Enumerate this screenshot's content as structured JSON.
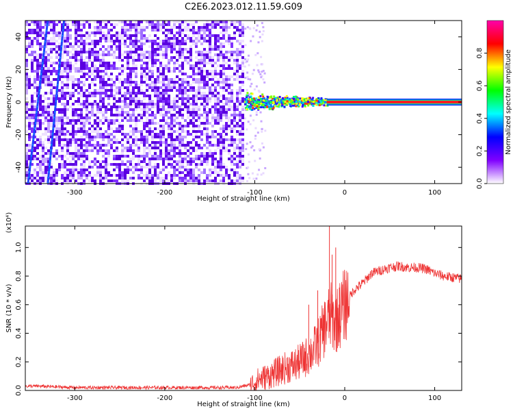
{
  "title": "C2E6.2023.012.11.59.G09",
  "chart_data": [
    {
      "type": "heatmap",
      "xlabel": "Height of straight line (km)",
      "ylabel": "Frequency (Hz)",
      "xlim": [
        -355,
        130
      ],
      "ylim": [
        -50,
        50
      ],
      "x_ticks": [
        -300,
        -200,
        -100,
        0,
        100
      ],
      "y_ticks": [
        -40,
        -20,
        0,
        20,
        40
      ],
      "noise_region_x": [
        -355,
        -112
      ],
      "signal_track": {
        "freq": 0,
        "x_start": -112,
        "x_end": 130,
        "scatter_segment_x": [
          -112,
          -20
        ],
        "strong_segment_x": [
          -20,
          130
        ]
      },
      "diagonal_artifacts": [
        {
          "x0": -352,
          "y0": -50,
          "x1": -330,
          "y1": 50
        },
        {
          "x0": -330,
          "y0": -50,
          "x1": -312,
          "y1": 50
        }
      ],
      "colorbar": {
        "label": "Normalized spectral amplitude",
        "min": 0.0,
        "max": 1.0,
        "ticks": [
          0.0,
          0.2,
          0.4,
          0.6,
          0.8
        ],
        "colormap": [
          "#ffffff",
          "#8000ff",
          "#0000ff",
          "#00ffff",
          "#00ff00",
          "#ffff00",
          "#ff0000",
          "#ff00aa"
        ]
      }
    },
    {
      "type": "line",
      "xlabel": "Height of straight line (km)",
      "ylabel": "SNR (10 * v/v)",
      "y_exponent": "(x10⁴)",
      "xlim": [
        -355,
        130
      ],
      "ylim": [
        0,
        1.15
      ],
      "x_ticks": [
        -300,
        -200,
        -100,
        0,
        100
      ],
      "y_ticks": [
        0.0,
        0.2,
        0.4,
        0.6,
        0.8,
        1.0
      ],
      "color": "#ee3333",
      "series": [
        {
          "x": [
            -355,
            -340,
            -320,
            -300,
            -250,
            -200,
            -150,
            -120,
            -105,
            -95,
            -85,
            -75,
            -65,
            -55,
            -45,
            -35,
            -28,
            -22,
            -18,
            -15,
            -12,
            -8,
            -4,
            0,
            5,
            10,
            20,
            30,
            40,
            50,
            60,
            70,
            80,
            90,
            100,
            110,
            120,
            130
          ],
          "y": [
            0.03,
            0.03,
            0.025,
            0.02,
            0.02,
            0.02,
            0.02,
            0.02,
            0.04,
            0.08,
            0.1,
            0.13,
            0.16,
            0.18,
            0.22,
            0.28,
            0.35,
            0.45,
            0.5,
            0.52,
            0.48,
            0.5,
            0.55,
            0.6,
            0.65,
            0.7,
            0.75,
            0.82,
            0.84,
            0.86,
            0.87,
            0.86,
            0.86,
            0.85,
            0.82,
            0.8,
            0.79,
            0.78
          ]
        }
      ],
      "spikes": [
        {
          "x": -40,
          "y": 0.6
        },
        {
          "x": -30,
          "y": 0.7
        },
        {
          "x": -17,
          "y": 1.15
        },
        {
          "x": -14,
          "y": 0.95
        },
        {
          "x": -10,
          "y": 1.0
        },
        {
          "x": -6,
          "y": 0.72
        }
      ]
    }
  ]
}
